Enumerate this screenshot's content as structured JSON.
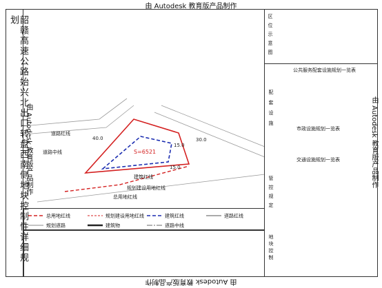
{
  "watermark": "由 Autodesk 教育版产品制作",
  "title": "韶赣高速公路始兴北出口转盘西南侧地块控制性详细规划",
  "map": {
    "labels": [
      "道路红线",
      "道路中线",
      "40.0",
      "30.0",
      "15.0",
      "15.0",
      "S=6521",
      "建筑红线",
      "规划建设用地红线",
      "总用地红线"
    ]
  },
  "legend": [
    "总用地红线",
    "规划建设用地红线",
    "建筑红线",
    "道路红线",
    "规划道路",
    "建筑物",
    "道路中线"
  ],
  "panel": {
    "location": "区位示意图",
    "sections": [
      "配套设施",
      "管控规定",
      "地块控制"
    ],
    "tables": [
      "公共服务配套设施规划一览表",
      "市政设施规划一览表",
      "交通设施规划一览表"
    ]
  }
}
